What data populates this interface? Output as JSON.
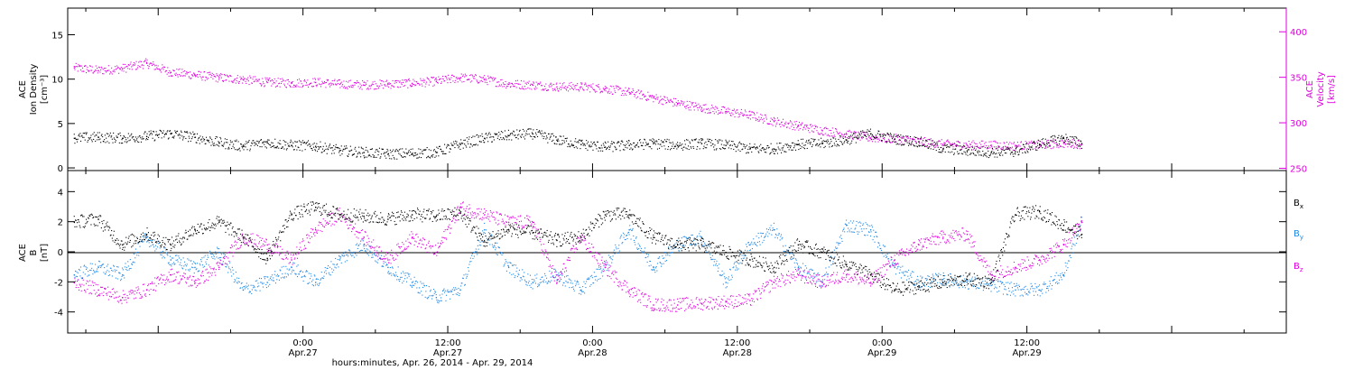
{
  "colors": {
    "black": "#000000",
    "magenta": "#e000e0",
    "blue": "#1e88e5",
    "axis": "#000000"
  },
  "time_axis": {
    "title": "hours:minutes, Apr. 26, 2014 - Apr. 29, 2014",
    "range_hours": [
      -19.5,
      81.5
    ],
    "ticks": [
      {
        "hour": 0,
        "time": "0:00",
        "date": "Apr.27"
      },
      {
        "hour": 12,
        "time": "12:00",
        "date": "Apr.27"
      },
      {
        "hour": 24,
        "time": "0:00",
        "date": "Apr.28"
      },
      {
        "hour": 36,
        "time": "12:00",
        "date": "Apr.28"
      },
      {
        "hour": 48,
        "time": "0:00",
        "date": "Apr.29"
      },
      {
        "hour": 60,
        "time": "12:00",
        "date": "Apr.29"
      }
    ]
  },
  "chart_data": [
    {
      "type": "scatter",
      "panel": "top",
      "ylabel_left": [
        "ACE",
        "Ion Density",
        "[cm⁻³]"
      ],
      "ylabel_right": [
        "ACE",
        "Velocity",
        "[km/s]"
      ],
      "ylim_left": [
        -0.3,
        18
      ],
      "ylim_right": [
        247.5,
        426
      ],
      "yticks_left": [
        0,
        5,
        10,
        15
      ],
      "yticks_right": [
        250,
        300,
        350,
        400
      ],
      "series": [
        {
          "name": "Ion Density",
          "axis": "left",
          "color": "#000000",
          "x": [
            -19,
            -17,
            -15,
            -13,
            -11,
            -9,
            -7,
            -5,
            -3,
            -1,
            1,
            3,
            5,
            7,
            9,
            11,
            13,
            15,
            17,
            19,
            21,
            23,
            25,
            27,
            29,
            31,
            33,
            35,
            37,
            39,
            41,
            43,
            45,
            47,
            49,
            51,
            53,
            55,
            57,
            59,
            61,
            63,
            64.5
          ],
          "y": [
            3.4,
            3.5,
            3.4,
            3.6,
            3.9,
            3.5,
            2.9,
            2.5,
            2.9,
            2.6,
            2.5,
            2.0,
            1.8,
            1.6,
            1.7,
            1.8,
            2.7,
            3.4,
            3.7,
            3.9,
            3.2,
            2.7,
            2.4,
            2.6,
            2.8,
            2.6,
            2.8,
            2.6,
            2.2,
            2.2,
            2.7,
            2.8,
            3.2,
            3.9,
            3.3,
            3.0,
            2.2,
            2.0,
            1.8,
            1.9,
            2.7,
            3.4,
            2.8
          ]
        },
        {
          "name": "Velocity",
          "axis": "right",
          "color": "#e000e0",
          "x": [
            -19,
            -17,
            -15,
            -13,
            -11,
            -9,
            -7,
            -5,
            -3,
            -1,
            1,
            3,
            5,
            7,
            9,
            11,
            13,
            15,
            17,
            19,
            21,
            23,
            25,
            27,
            29,
            31,
            33,
            35,
            37,
            39,
            41,
            43,
            45,
            47,
            49,
            51,
            53,
            55,
            57,
            59,
            61,
            63,
            64.5
          ],
          "y": [
            361,
            358,
            360,
            366,
            356,
            353,
            350,
            348,
            345,
            344,
            345,
            343,
            342,
            343,
            344,
            346,
            350,
            348,
            343,
            342,
            340,
            340,
            338,
            334,
            328,
            322,
            317,
            313,
            309,
            302,
            297,
            292,
            288,
            284,
            283,
            280,
            277,
            276,
            276,
            275,
            276,
            278,
            277
          ]
        }
      ]
    },
    {
      "type": "scatter",
      "panel": "bottom",
      "ylabel_left": [
        "ACE",
        "B",
        "[nT]"
      ],
      "ylim": [
        -5.4,
        5.4
      ],
      "yticks": [
        -4,
        -2,
        0,
        2,
        4
      ],
      "zero_line": true,
      "legend_placement": "right",
      "series": [
        {
          "name": "Bx",
          "label_main": "B",
          "label_sub": "x",
          "color": "#000000",
          "x": [
            -19,
            -17,
            -15,
            -13,
            -11,
            -9,
            -7,
            -5,
            -3,
            -1,
            1,
            3,
            5,
            7,
            9,
            11,
            13,
            15,
            17,
            19,
            21,
            23,
            25,
            27,
            29,
            31,
            33,
            35,
            37,
            39,
            41,
            43,
            45,
            47,
            49,
            51,
            53,
            55,
            57,
            59,
            61,
            63,
            64.5
          ],
          "y": [
            2.0,
            2.2,
            0.5,
            1.2,
            0.5,
            1.5,
            2.0,
            1.0,
            -0.4,
            2.5,
            3.0,
            2.5,
            2.4,
            2.2,
            2.5,
            2.4,
            2.6,
            0.7,
            1.5,
            1.3,
            0.8,
            1.0,
            2.5,
            2.5,
            1.0,
            0.5,
            0.5,
            0.0,
            -0.5,
            -1.0,
            0.5,
            0.0,
            -0.8,
            -1.5,
            -2.5,
            -2.3,
            -2.0,
            -1.8,
            -2.0,
            2.5,
            2.7,
            1.8,
            1.2
          ]
        },
        {
          "name": "By",
          "label_main": "B",
          "label_sub": "y",
          "color": "#1e88e5",
          "x": [
            -19,
            -17,
            -15,
            -13,
            -11,
            -9,
            -7,
            -5,
            -3,
            -1,
            1,
            3,
            5,
            7,
            9,
            11,
            13,
            15,
            17,
            19,
            21,
            23,
            25,
            27,
            29,
            31,
            33,
            35,
            37,
            39,
            41,
            43,
            45,
            47,
            49,
            51,
            53,
            55,
            57,
            59,
            61,
            63,
            64.5
          ],
          "y": [
            -1.5,
            -1.0,
            -1.5,
            1.0,
            -0.5,
            -1.0,
            0.0,
            -2.5,
            -2.0,
            -1.0,
            -2.0,
            -0.5,
            0.5,
            -1.0,
            -2.0,
            -3.0,
            -2.5,
            1.5,
            -1.0,
            -2.0,
            -1.5,
            -2.5,
            -1.0,
            1.5,
            -1.0,
            0.5,
            1.0,
            -2.0,
            0.5,
            1.5,
            -1.0,
            -2.0,
            1.8,
            1.5,
            -1.0,
            -2.0,
            -1.8,
            -2.0,
            -2.2,
            -2.5,
            -2.5,
            -1.5,
            2.0
          ]
        },
        {
          "name": "Bz",
          "label_main": "B",
          "label_sub": "z",
          "color": "#e000e0",
          "x": [
            -19,
            -17,
            -15,
            -13,
            -11,
            -9,
            -7,
            -5,
            -3,
            -1,
            1,
            3,
            5,
            7,
            9,
            11,
            13,
            15,
            17,
            19,
            21,
            23,
            25,
            27,
            29,
            31,
            33,
            35,
            37,
            39,
            41,
            43,
            45,
            47,
            49,
            51,
            53,
            55,
            57,
            59,
            61,
            63,
            64.5
          ],
          "y": [
            -2.0,
            -2.5,
            -3.0,
            -2.5,
            -1.5,
            -2.0,
            -1.0,
            1.0,
            0.5,
            -0.5,
            1.5,
            2.5,
            1.0,
            -0.5,
            1.0,
            0.0,
            3.0,
            2.5,
            2.0,
            2.0,
            -2.0,
            1.0,
            -1.0,
            -2.5,
            -3.5,
            -3.5,
            -3.4,
            -3.3,
            -3.2,
            -2.0,
            -1.5,
            -2.0,
            -1.5,
            -2.0,
            -0.5,
            0.5,
            1.0,
            1.2,
            -1.5,
            -1.0,
            -0.5,
            0.5,
            2.0
          ]
        }
      ]
    }
  ]
}
